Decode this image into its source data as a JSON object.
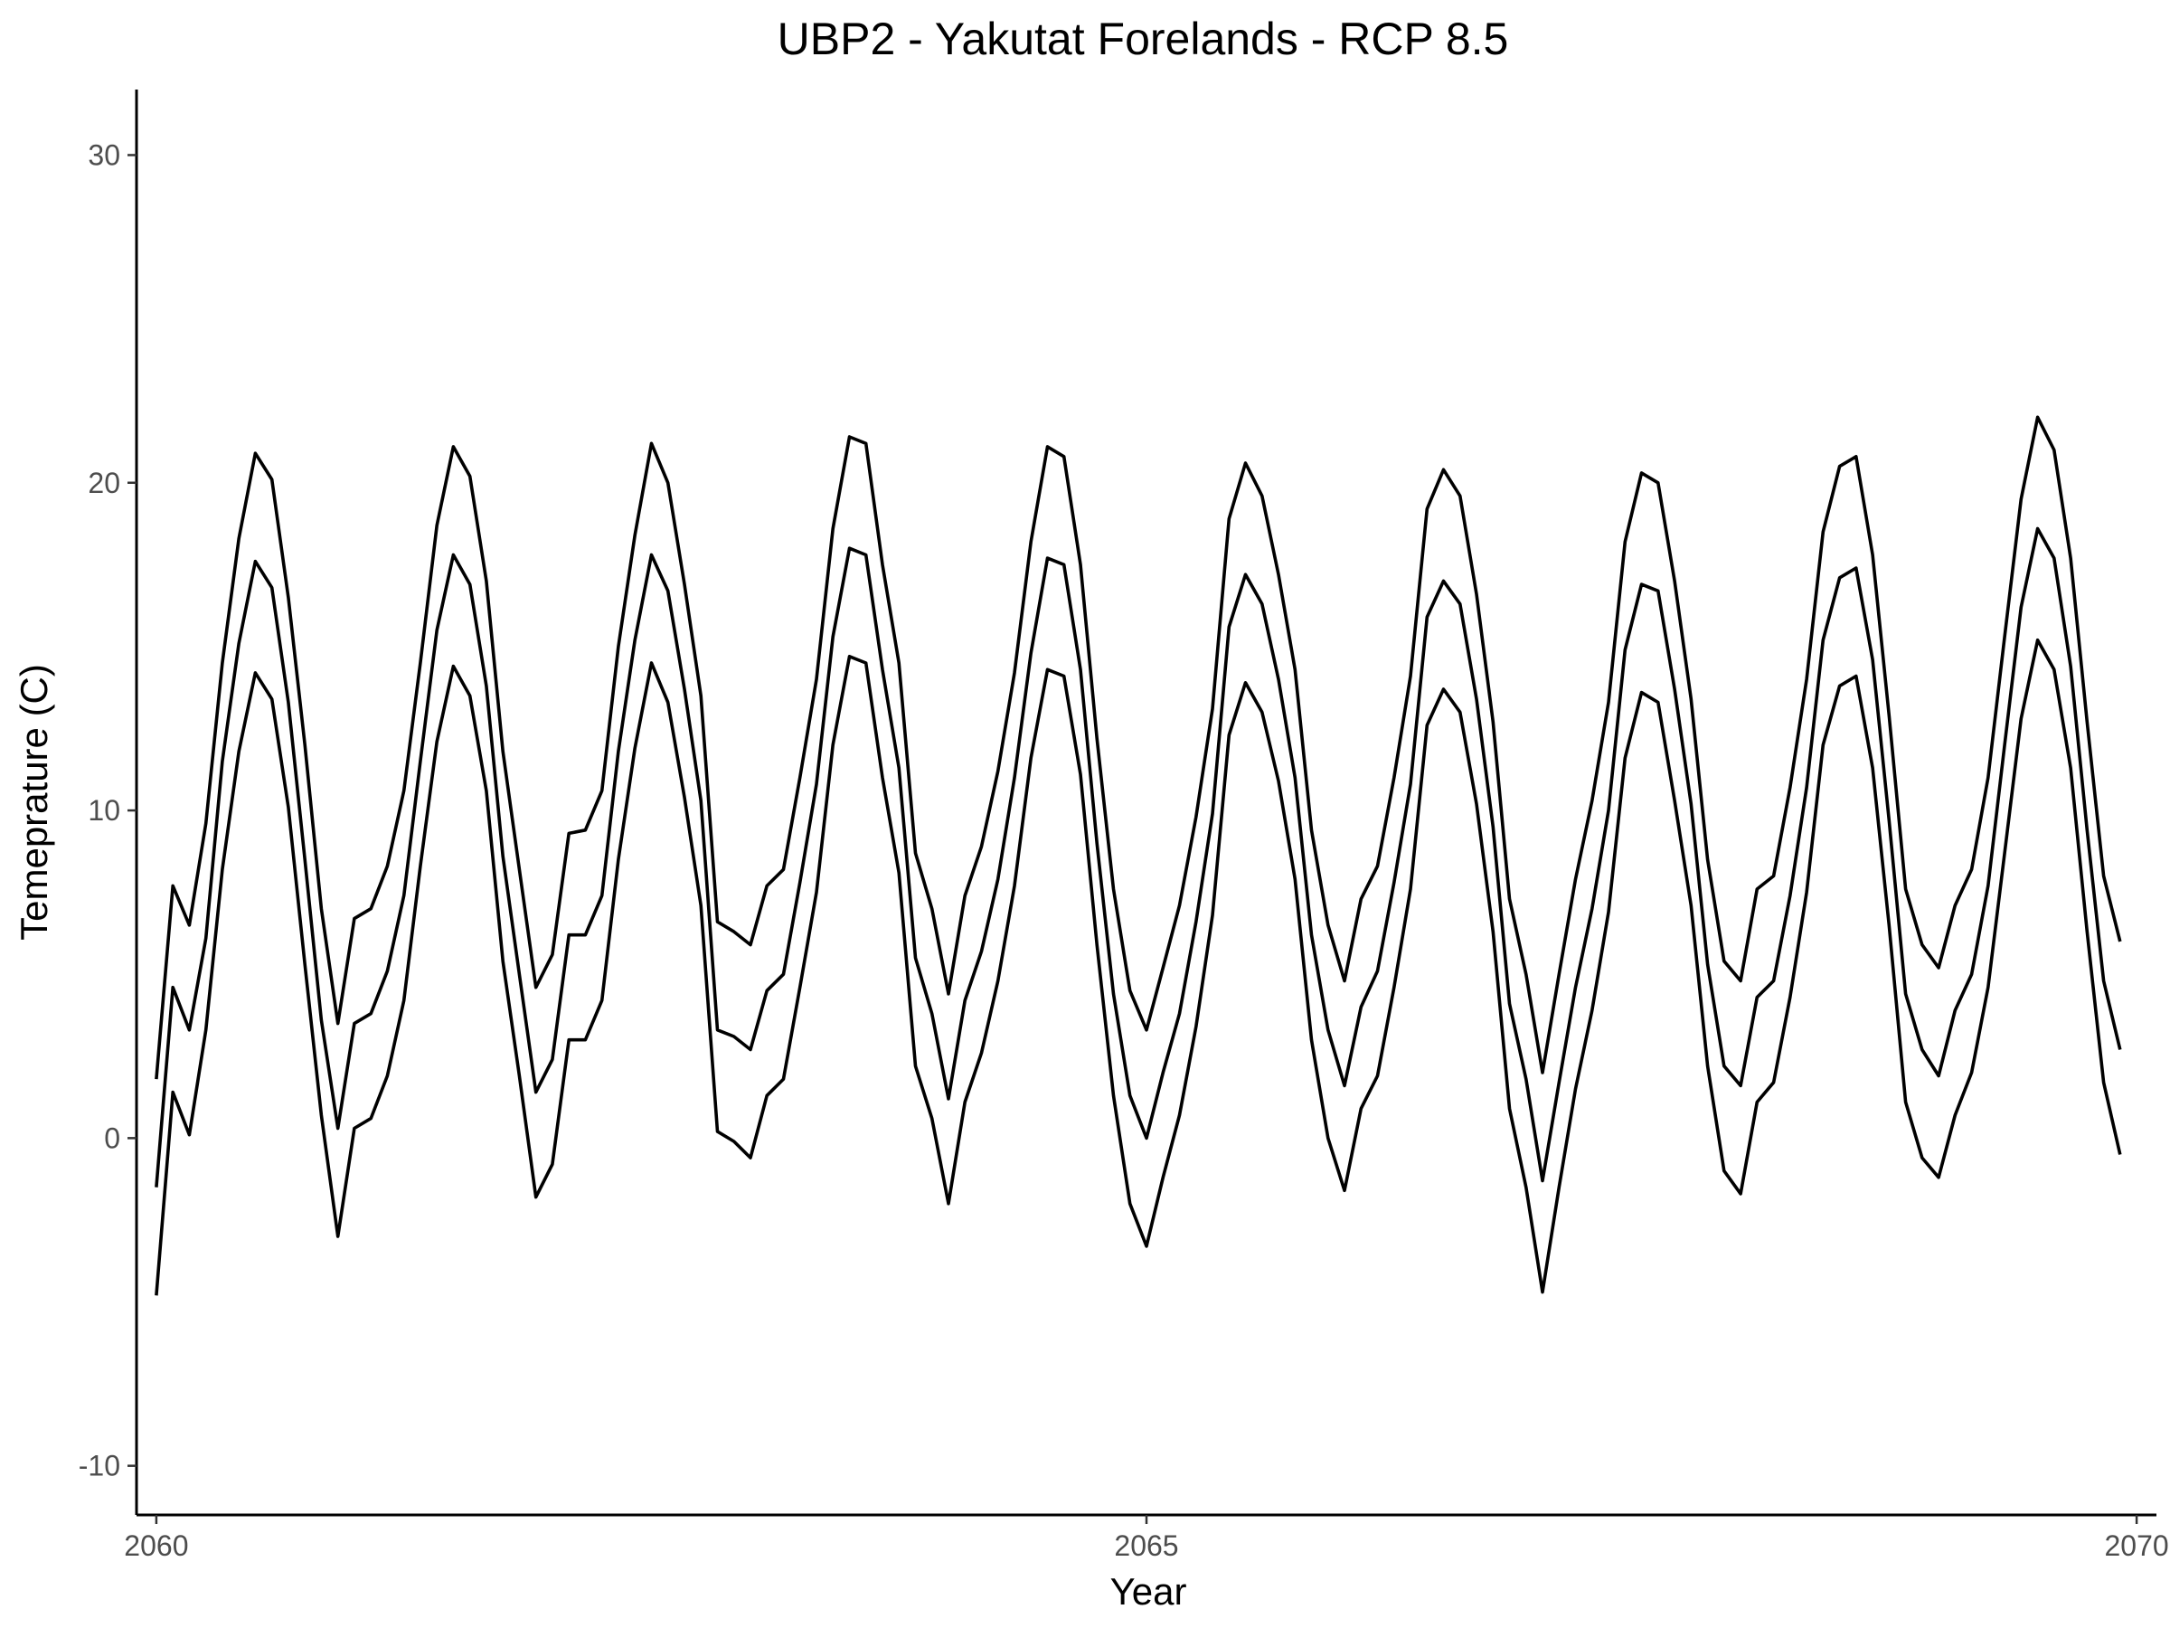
{
  "chart_data": {
    "type": "line",
    "title": "UBP2 - Yakutat Forelands - RCP 8.5",
    "xlabel": "Year",
    "ylabel": "Temeprature (C)",
    "xlim": [
      2059.9,
      2070.1
    ],
    "ylim": [
      -11.5,
      32
    ],
    "x_ticks": [
      2060,
      2065,
      2070
    ],
    "x_tick_labels": [
      "2060",
      "2065",
      "2070"
    ],
    "y_ticks": [
      -10,
      0,
      10,
      20,
      30
    ],
    "y_tick_labels": [
      "-10",
      "0",
      "10",
      "20",
      "30"
    ],
    "grid": false,
    "legend": "none",
    "x_start": 2060,
    "x_step": 0.0833333,
    "series": [
      {
        "values": [
          1.8,
          7.7,
          6.5,
          9.6,
          14.5,
          18.3,
          20.9,
          20.1,
          16.5,
          12.0,
          7.0,
          3.5,
          6.7,
          7.0,
          8.3,
          10.6,
          14.5,
          18.7,
          21.1,
          20.2,
          17.0,
          11.8,
          8.2,
          4.6,
          5.6,
          9.3,
          9.4,
          10.6,
          15.0,
          18.4,
          21.2,
          20.0,
          16.9,
          13.5,
          6.6,
          6.3,
          5.9,
          7.7,
          8.2,
          11.0,
          14.0,
          18.6,
          21.4,
          21.2,
          17.5,
          14.5,
          8.7,
          7.0,
          4.4,
          7.4,
          8.9,
          11.2,
          14.2,
          18.2,
          21.1,
          20.8,
          17.5,
          12.2,
          7.6,
          4.5,
          3.3,
          5.2,
          7.1,
          9.8,
          13.1,
          18.9,
          20.6,
          19.6,
          17.2,
          14.3,
          9.4,
          6.5,
          4.8,
          7.3,
          8.3,
          11.0,
          14.1,
          19.2,
          20.4,
          19.6,
          16.6,
          12.7,
          7.3,
          5.0,
          2.0,
          5.0,
          7.9,
          10.3,
          13.3,
          18.2,
          20.3,
          20.0,
          17.0,
          13.4,
          8.5,
          5.4,
          4.8,
          7.6,
          8.0,
          10.7,
          14.0,
          18.5,
          20.5,
          20.8,
          17.8,
          12.9,
          7.6,
          5.9,
          5.2,
          7.1,
          8.2,
          11.0,
          15.3,
          19.5,
          22.0,
          21.0,
          17.7,
          12.7,
          8.0,
          6.0
        ]
      },
      {
        "values": [
          -1.5,
          4.6,
          3.3,
          6.1,
          11.5,
          15.1,
          17.6,
          16.8,
          13.3,
          8.5,
          3.6,
          0.3,
          3.5,
          3.8,
          5.1,
          7.4,
          11.5,
          15.5,
          17.8,
          16.9,
          13.8,
          8.6,
          5.0,
          1.4,
          2.4,
          6.2,
          6.2,
          7.4,
          11.8,
          15.2,
          17.8,
          16.7,
          13.7,
          10.3,
          3.3,
          3.1,
          2.7,
          4.5,
          5.0,
          7.8,
          10.8,
          15.3,
          18.0,
          17.8,
          14.3,
          11.3,
          5.5,
          3.8,
          1.2,
          4.2,
          5.7,
          7.9,
          11.0,
          14.8,
          17.7,
          17.5,
          14.3,
          9.0,
          4.4,
          1.3,
          0.0,
          2.0,
          3.8,
          6.6,
          9.9,
          15.6,
          17.2,
          16.3,
          14.0,
          11.0,
          6.2,
          3.3,
          1.6,
          4.0,
          5.1,
          7.8,
          10.8,
          15.9,
          17.0,
          16.3,
          13.4,
          9.5,
          4.1,
          1.8,
          -1.3,
          1.7,
          4.6,
          7.0,
          10.0,
          14.9,
          16.9,
          16.7,
          13.7,
          10.2,
          5.3,
          2.2,
          1.6,
          4.3,
          4.8,
          7.4,
          10.7,
          15.2,
          17.1,
          17.4,
          14.6,
          9.7,
          4.4,
          2.7,
          1.9,
          3.9,
          5.0,
          7.7,
          12.0,
          16.2,
          18.6,
          17.7,
          14.4,
          9.4,
          4.8,
          2.7
        ]
      },
      {
        "values": [
          -4.8,
          1.4,
          0.1,
          3.3,
          8.2,
          11.8,
          14.2,
          13.4,
          10.1,
          5.3,
          0.7,
          -3.0,
          0.3,
          0.6,
          1.9,
          4.2,
          8.3,
          12.1,
          14.4,
          13.5,
          10.6,
          5.4,
          1.9,
          -1.8,
          -0.8,
          3.0,
          3.0,
          4.2,
          8.5,
          11.9,
          14.5,
          13.3,
          10.4,
          7.1,
          0.2,
          -0.1,
          -0.6,
          1.3,
          1.8,
          4.6,
          7.5,
          12.0,
          14.7,
          14.5,
          11.0,
          8.1,
          2.2,
          0.6,
          -2.0,
          1.1,
          2.6,
          4.8,
          7.7,
          11.6,
          14.3,
          14.1,
          11.1,
          5.9,
          1.3,
          -2.0,
          -3.3,
          -1.2,
          0.7,
          3.4,
          6.8,
          12.3,
          13.9,
          13.0,
          10.9,
          7.9,
          3.0,
          0.0,
          -1.6,
          0.9,
          1.9,
          4.6,
          7.6,
          12.6,
          13.7,
          13.0,
          10.2,
          6.3,
          0.9,
          -1.5,
          -4.7,
          -1.5,
          1.5,
          3.9,
          6.9,
          11.6,
          13.6,
          13.3,
          10.3,
          7.1,
          2.2,
          -1.0,
          -1.7,
          1.1,
          1.7,
          4.3,
          7.5,
          12.0,
          13.8,
          14.1,
          11.3,
          6.5,
          1.1,
          -0.6,
          -1.2,
          0.7,
          2.0,
          4.6,
          8.7,
          12.8,
          15.2,
          14.3,
          11.3,
          6.3,
          1.7,
          -0.5
        ]
      }
    ]
  }
}
